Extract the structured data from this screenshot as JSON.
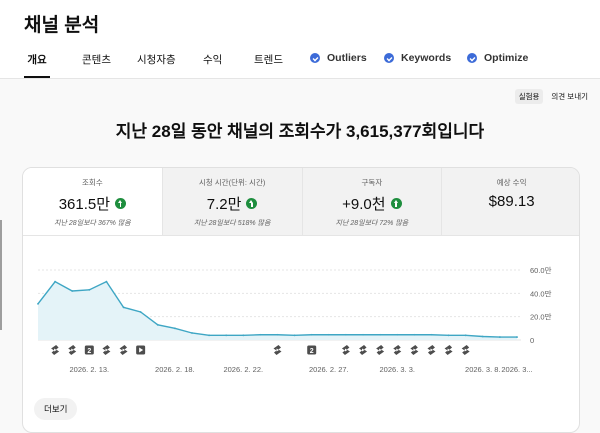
{
  "page": {
    "title": "채널 분석"
  },
  "tabs": [
    {
      "label": "개요",
      "active": true
    },
    {
      "label": "콘텐츠"
    },
    {
      "label": "시청자층"
    },
    {
      "label": "수익"
    },
    {
      "label": "트렌드"
    },
    {
      "label": "Outliers",
      "icon": "extension-check-icon"
    },
    {
      "label": "Keywords",
      "icon": "extension-check-icon"
    },
    {
      "label": "Optimize",
      "icon": "extension-check-icon"
    }
  ],
  "top_actions": {
    "beta": "실험용",
    "feedback": "의견 보내기"
  },
  "headline": "지난 28일 동안 채널의 조회수가 3,615,377회입니다",
  "metrics": [
    {
      "label": "조회수",
      "value": "361.5만",
      "sub": "지난 28일보다 367% 많음",
      "trend": "up"
    },
    {
      "label": "시청 시간(단위: 시간)",
      "value": "7.2만",
      "sub": "지난 28일보다 518% 많음",
      "trend": "up"
    },
    {
      "label": "구독자",
      "value": "+9.0천",
      "sub": "지난 28일보다 72% 많음",
      "trend": "up"
    },
    {
      "label": "예상 수익",
      "value": "$89.13",
      "sub": "",
      "trend": ""
    }
  ],
  "colors": {
    "line": "#3ea6c4",
    "fill": "#e4f3f8",
    "up": "#1e8e3e"
  },
  "chart_data": {
    "type": "area",
    "y_unit": "만",
    "x": [
      "2026. 2. 10.",
      "2026. 2. 11.",
      "2026. 2. 12.",
      "2026. 2. 13.",
      "2026. 2. 14.",
      "2026. 2. 15.",
      "2026. 2. 16.",
      "2026. 2. 17.",
      "2026. 2. 18.",
      "2026. 2. 19.",
      "2026. 2. 20.",
      "2026. 2. 21.",
      "2026. 2. 22.",
      "2026. 2. 23.",
      "2026. 2. 24.",
      "2026. 2. 25.",
      "2026. 2. 26.",
      "2026. 2. 27.",
      "2026. 2. 28.",
      "2026. 3. 1.",
      "2026. 3. 2.",
      "2026. 3. 3.",
      "2026. 3. 4.",
      "2026. 3. 5.",
      "2026. 3. 6.",
      "2026. 3. 7.",
      "2026. 3. 8.",
      "2026. 3. 9.",
      "2026. 3. 10."
    ],
    "values": [
      31,
      50,
      42,
      43,
      50,
      28,
      24,
      13,
      10,
      6,
      4,
      4,
      4,
      4.5,
      4.5,
      4,
      4.5,
      4.5,
      4.5,
      4.5,
      4.5,
      4.5,
      4.5,
      4.5,
      4,
      4,
      3,
      2.5,
      2.5
    ],
    "ylim": [
      0,
      60
    ],
    "y_ticks": [
      {
        "value": 0,
        "label": "0"
      },
      {
        "value": 20,
        "label": "20.0만"
      },
      {
        "value": 40,
        "label": "40.0만"
      },
      {
        "value": 60,
        "label": "60.0만"
      }
    ],
    "x_tick_labels": [
      {
        "index": 3,
        "label": "2026. 2. 13."
      },
      {
        "index": 8,
        "label": "2026. 2. 18."
      },
      {
        "index": 12,
        "label": "2026. 2. 22."
      },
      {
        "index": 17,
        "label": "2026. 2. 27."
      },
      {
        "index": 21,
        "label": "2026. 3. 3."
      },
      {
        "index": 26,
        "label": "2026. 3. 8."
      },
      {
        "index": 28,
        "label": "2026. 3..."
      }
    ],
    "markers": [
      {
        "index": 1,
        "kind": "shorts-icon"
      },
      {
        "index": 2,
        "kind": "shorts-icon"
      },
      {
        "index": 3,
        "kind": "count",
        "label": "2"
      },
      {
        "index": 4,
        "kind": "shorts-icon"
      },
      {
        "index": 5,
        "kind": "shorts-icon"
      },
      {
        "index": 6,
        "kind": "video-icon"
      },
      {
        "index": 14,
        "kind": "shorts-icon"
      },
      {
        "index": 16,
        "kind": "count",
        "label": "2"
      },
      {
        "index": 18,
        "kind": "shorts-icon"
      },
      {
        "index": 19,
        "kind": "shorts-icon"
      },
      {
        "index": 20,
        "kind": "shorts-icon"
      },
      {
        "index": 21,
        "kind": "shorts-icon"
      },
      {
        "index": 22,
        "kind": "shorts-icon"
      },
      {
        "index": 23,
        "kind": "shorts-icon"
      },
      {
        "index": 24,
        "kind": "shorts-icon"
      },
      {
        "index": 25,
        "kind": "shorts-icon"
      }
    ]
  },
  "more_button": "더보기"
}
